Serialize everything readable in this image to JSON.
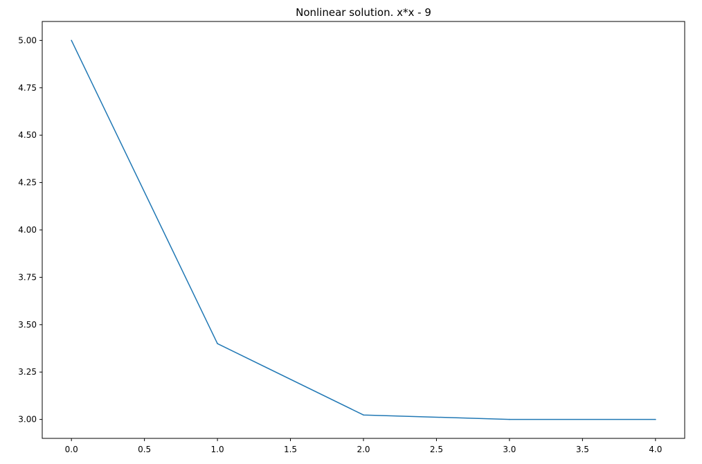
{
  "chart_data": {
    "type": "line",
    "title": "Nonlinear solution. x*x - 9",
    "xlabel": "",
    "ylabel": "",
    "xlim": [
      -0.2,
      4.2
    ],
    "ylim": [
      2.9,
      5.1
    ],
    "xticks": [
      0.0,
      0.5,
      1.0,
      1.5,
      2.0,
      2.5,
      3.0,
      3.5,
      4.0
    ],
    "xtick_labels": [
      "0.0",
      "0.5",
      "1.0",
      "1.5",
      "2.0",
      "2.5",
      "3.0",
      "3.5",
      "4.0"
    ],
    "yticks": [
      3.0,
      3.25,
      3.5,
      3.75,
      4.0,
      4.25,
      4.5,
      4.75,
      5.0
    ],
    "ytick_labels": [
      "3.00",
      "3.25",
      "3.50",
      "3.75",
      "4.00",
      "4.25",
      "4.50",
      "4.75",
      "5.00"
    ],
    "grid": false,
    "legend": "none",
    "series": [
      {
        "x": [
          0,
          1,
          2,
          3,
          4
        ],
        "y": [
          5.0,
          3.4,
          3.0235,
          3.0001,
          3.0
        ],
        "color": "#1f77b4"
      }
    ]
  }
}
